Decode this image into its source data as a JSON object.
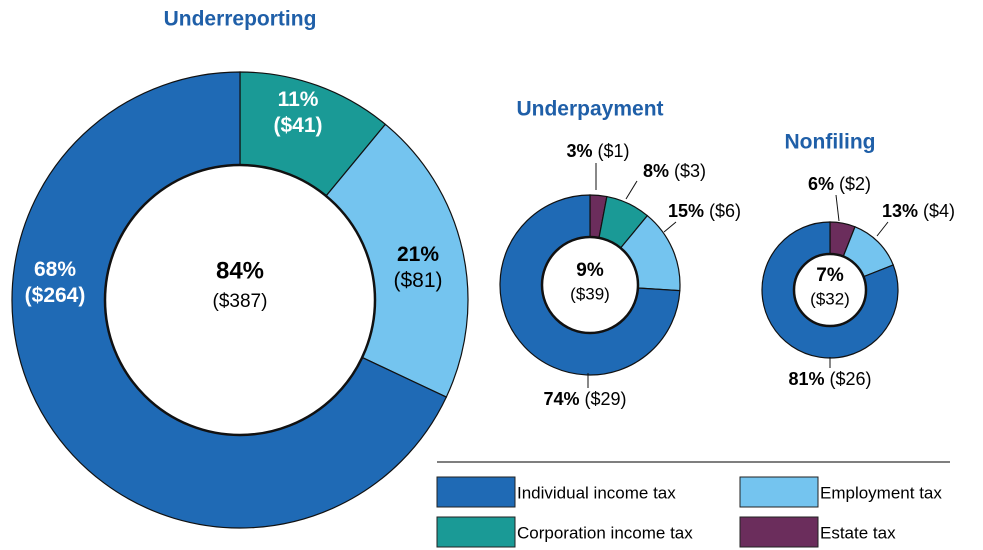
{
  "chart_data": [
    {
      "type": "pie",
      "title": "Underreporting",
      "values": [
        11,
        21,
        68
      ],
      "value_labels": [
        "11%",
        "21%",
        "68%"
      ],
      "amounts": [
        41,
        81,
        264
      ],
      "amount_labels": [
        "($41)",
        "($81)",
        "($264)"
      ],
      "colors": [
        "#1a9a96",
        "#74c4ef",
        "#1f6ab5"
      ],
      "total": 84,
      "total_label": "84%",
      "total_amount": 387,
      "total_amount_label": "($387)"
    },
    {
      "type": "pie",
      "title": "Underpayment",
      "values": [
        3,
        8,
        15,
        74
      ],
      "value_labels": [
        "3%",
        "8%",
        "15%",
        "74%"
      ],
      "amounts": [
        1,
        3,
        6,
        29
      ],
      "amount_labels": [
        "($1)",
        "($3)",
        "($6)",
        "($29)"
      ],
      "colors": [
        "#6b2d5c",
        "#1a9a96",
        "#74c4ef",
        "#1f6ab5"
      ],
      "total": 9,
      "total_label": "9%",
      "total_amount": 39,
      "total_amount_label": "($39)"
    },
    {
      "type": "pie",
      "title": "Nonfiling",
      "values": [
        6,
        13,
        81
      ],
      "value_labels": [
        "6%",
        "13%",
        "81%"
      ],
      "amounts": [
        2,
        4,
        26
      ],
      "amount_labels": [
        "($2)",
        "($4)",
        "($26)"
      ],
      "colors": [
        "#6b2d5c",
        "#74c4ef",
        "#1f6ab5"
      ],
      "total": 7,
      "total_label": "7%",
      "total_amount": 32,
      "total_amount_label": "($32)"
    }
  ],
  "legend": {
    "labels": [
      "Individual income tax",
      "Employment tax",
      "Corporation income tax",
      "Estate tax"
    ],
    "colors": [
      "#1f6ab5",
      "#74c4ef",
      "#1a9a96",
      "#6b2d5c"
    ]
  }
}
